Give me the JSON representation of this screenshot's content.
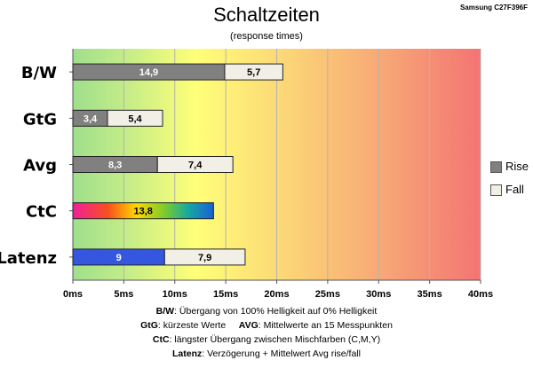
{
  "header": {
    "title": "Schaltzeiten",
    "subtitle": "(response times)",
    "model": "Samsung C27F396F"
  },
  "chart_data": {
    "type": "bar",
    "orientation": "horizontal",
    "stacked": true,
    "categories": [
      "B/W",
      "GtG",
      "Avg",
      "CtC",
      "Latenz"
    ],
    "series": [
      {
        "name": "Rise",
        "values": [
          14.9,
          3.4,
          8.3,
          13.8,
          9
        ]
      },
      {
        "name": "Fall",
        "values": [
          5.7,
          5.4,
          7.4,
          null,
          7.9
        ]
      }
    ],
    "data_labels": {
      "Rise": [
        "14,9",
        "3,4",
        "8,3",
        "13,8",
        "9"
      ],
      "Fall": [
        "5,7",
        "5,4",
        "7,4",
        "",
        "7,9"
      ]
    },
    "xlim": [
      0,
      40
    ],
    "x_ticks": [
      0,
      5,
      10,
      15,
      20,
      25,
      30,
      35,
      40
    ],
    "x_tick_labels": [
      "0ms",
      "5ms",
      "10ms",
      "15ms",
      "20ms",
      "25ms",
      "30ms",
      "35ms",
      "40ms"
    ],
    "grid": true,
    "legend": "right",
    "background": "gradient green-yellow-red",
    "colors": {
      "rise": "#808080",
      "fall": "#f2efe6",
      "latenz_rise": "#3557e0",
      "bg_green": "#a3e08e",
      "bg_yellow": "#ffff78",
      "bg_red": "#f47a7a"
    }
  },
  "legend": {
    "rise_label": "Rise",
    "fall_label": "Fall"
  },
  "notes": {
    "line1_key": "B/W",
    "line1_text": ":  Übergang von 100% Helligkeit auf 0% Helligkeit",
    "line2_key_a": "GtG",
    "line2_text_a": ": kürzeste  Werte",
    "line2_key_b": "AVG",
    "line2_text_b": ": Mittelwerte  an 15 Messpunkten",
    "line3_key": "CtC",
    "line3_text": ": längster Übergang  zwischen Mischfarben (C,M,Y)",
    "line4_key": "Latenz",
    "line4_text": ": Verzögerung  + Mittelwert Avg rise/fall"
  }
}
